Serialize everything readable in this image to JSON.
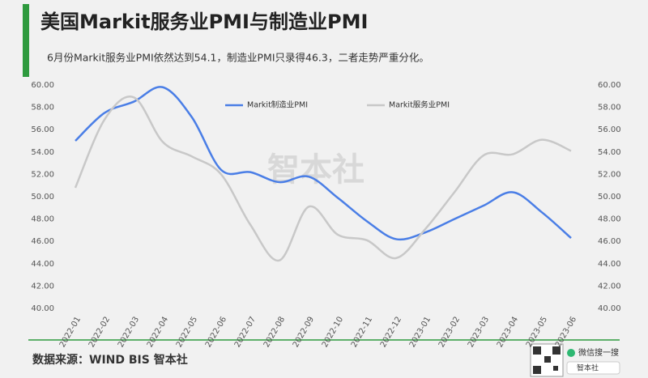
{
  "chart_data": {
    "type": "line",
    "title": "美国Markit服务业PMI与制造业PMI",
    "subtitle": "6月份Markit服务业PMI依然达到54.1，制造业PMI只录得46.3，二者走势严重分化。",
    "source": "数据来源：WIND BIS 智本社",
    "watermark": "智本社",
    "search_hint": "微信搜一搜",
    "search_box": "智本社",
    "categories": [
      "2022-01",
      "2022-02",
      "2022-03",
      "2022-04",
      "2022-05",
      "2022-06",
      "2022-07",
      "2022-08",
      "2022-09",
      "2022-10",
      "2022-11",
      "2022-12",
      "2023-01",
      "2023-02",
      "2023-03",
      "2023-04",
      "2023-05",
      "2023-06"
    ],
    "series": [
      {
        "name": "Markit制造业PMI",
        "color": "#4a7ee6",
        "values": [
          55.0,
          57.5,
          58.5,
          59.8,
          57.1,
          52.4,
          52.2,
          51.3,
          51.8,
          49.9,
          47.8,
          46.2,
          46.8,
          48.0,
          49.2,
          50.4,
          48.6,
          46.3
        ]
      },
      {
        "name": "Markit服务业PMI",
        "color": "#c8c8c8",
        "axis": "y2",
        "values": [
          50.8,
          56.9,
          58.9,
          54.9,
          53.6,
          52.0,
          47.5,
          44.3,
          49.1,
          46.6,
          46.1,
          44.5,
          47.1,
          50.4,
          53.7,
          53.8,
          55.1,
          54.1
        ]
      }
    ],
    "ylim": [
      40,
      60
    ],
    "yticks": [
      {
        "value": 40,
        "label": "40.00"
      },
      {
        "value": 42,
        "label": "42.00"
      },
      {
        "value": 44,
        "label": "44.00"
      },
      {
        "value": 46,
        "label": "46.00"
      },
      {
        "value": 48,
        "label": "48.00"
      },
      {
        "value": 50,
        "label": "50.00"
      },
      {
        "value": 52,
        "label": "52.00"
      },
      {
        "value": 54,
        "label": "54.00"
      },
      {
        "value": 56,
        "label": "56.00"
      },
      {
        "value": 58,
        "label": "58.00"
      },
      {
        "value": 60,
        "label": "60.00"
      }
    ],
    "y2lim": [
      40,
      60
    ],
    "y2ticks": [
      {
        "value": 40,
        "label": "40.00"
      },
      {
        "value": 42,
        "label": "42.00"
      },
      {
        "value": 44,
        "label": "44.00"
      },
      {
        "value": 46,
        "label": "46.00"
      },
      {
        "value": 48,
        "label": "48.00"
      },
      {
        "value": 50,
        "label": "50.00"
      },
      {
        "value": 52,
        "label": "52.00"
      },
      {
        "value": 54,
        "label": "54.00"
      },
      {
        "value": 56,
        "label": "56.00"
      },
      {
        "value": 58,
        "label": "58.00"
      },
      {
        "value": 60,
        "label": "60.00"
      }
    ],
    "grid": false
  }
}
